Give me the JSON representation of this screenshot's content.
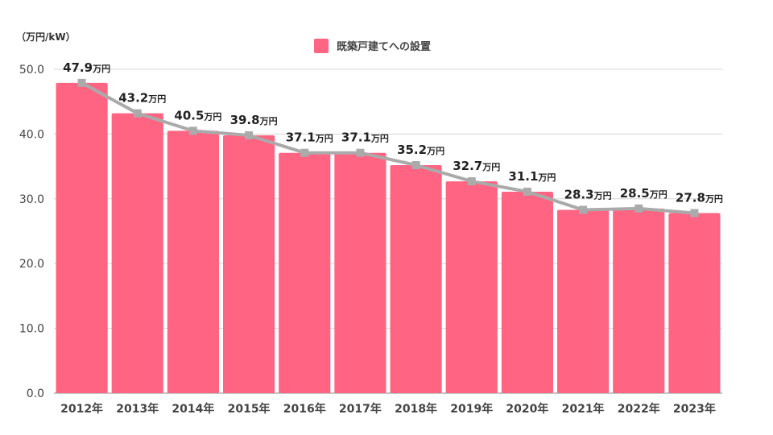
{
  "chart_data": {
    "type": "bar",
    "unit_label": "（万円/kW）",
    "categories": [
      "2012年",
      "2013年",
      "2014年",
      "2015年",
      "2016年",
      "2017年",
      "2018年",
      "2019年",
      "2020年",
      "2021年",
      "2022年",
      "2023年"
    ],
    "series": [
      {
        "name": "既築戸建てへの設置",
        "values": [
          47.9,
          43.2,
          40.5,
          39.8,
          37.1,
          37.1,
          35.2,
          32.7,
          31.1,
          28.3,
          28.5,
          27.8
        ]
      }
    ],
    "trend_line": {
      "values": [
        47.9,
        43.2,
        40.5,
        39.8,
        37.1,
        37.1,
        35.2,
        32.7,
        31.1,
        28.3,
        28.5,
        27.8
      ]
    },
    "data_labels": [
      "47.9",
      "43.2",
      "40.5",
      "39.8",
      "37.1",
      "37.1",
      "35.2",
      "32.7",
      "31.1",
      "28.3",
      "28.5",
      "27.8"
    ],
    "data_label_unit": "万円",
    "y_ticks": [
      "0.0",
      "10.0",
      "20.0",
      "30.0",
      "40.0",
      "50.0"
    ],
    "ylim": [
      0,
      50
    ],
    "grid": true,
    "legend_position": "top-center",
    "colors": {
      "bar": "#ff6482",
      "line": "#aaaaaa",
      "grid": "#d5d5d5",
      "axis": "#888888"
    }
  }
}
